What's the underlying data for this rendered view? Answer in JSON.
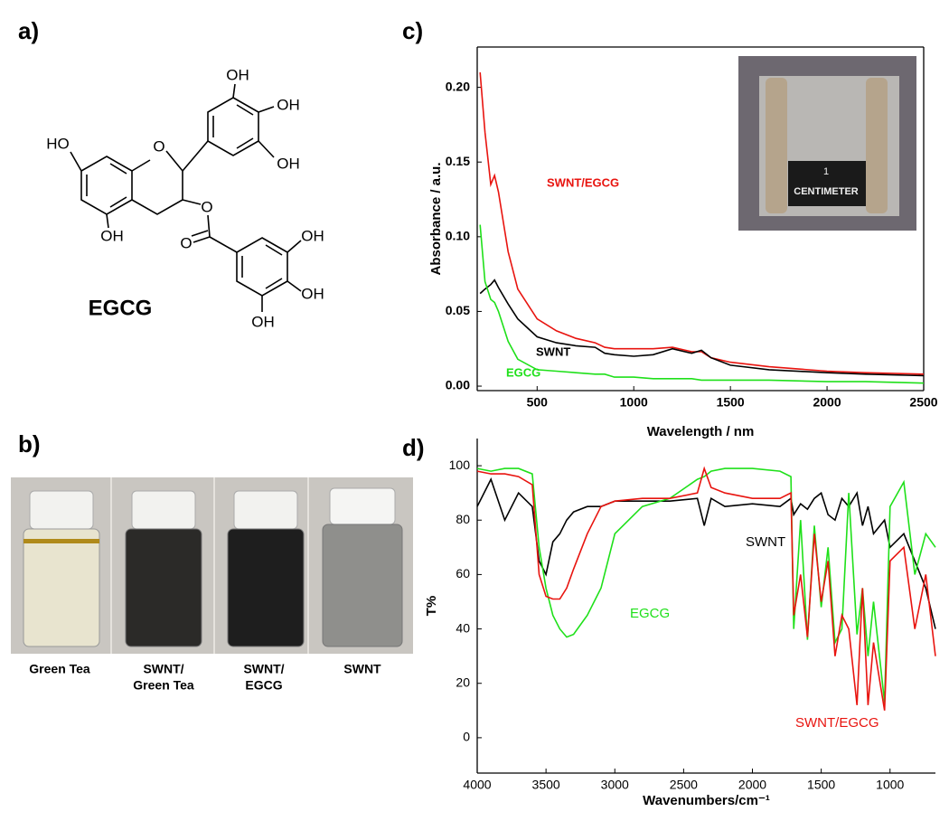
{
  "panel_labels": [
    "a)",
    "b)",
    "c)",
    "d)"
  ],
  "structure": {
    "name": "EGCG",
    "atoms": [
      "HO",
      "O",
      "OH",
      "OH",
      "OH",
      "OH",
      "O",
      "O",
      "OH",
      "OH",
      "OH"
    ]
  },
  "photo": {
    "captions": [
      [
        "Green Tea"
      ],
      [
        "SWNT/",
        "Green Tea"
      ],
      [
        "SWNT/",
        "EGCG"
      ],
      [
        "SWNT"
      ]
    ]
  },
  "inset": {
    "ruler_number": "1",
    "ruler_label": "CENTIMETER"
  },
  "chart_data": [
    {
      "type": "line",
      "xlabel": "Wavelength / nm",
      "ylabel": "Absorbance / a.u.",
      "xlim": [
        190,
        2500
      ],
      "ylim": [
        -0.003,
        0.227
      ],
      "xticks": [
        500,
        1000,
        1500,
        2000,
        2500
      ],
      "yticks": [
        {
          "value": 0,
          "label": "0.00"
        },
        0.05,
        {
          "value": 0.1,
          "label": "0.10"
        },
        0.15,
        {
          "value": 0.2,
          "label": "0.20"
        }
      ],
      "grid": false,
      "x": [
        205,
        230,
        260,
        280,
        300,
        350,
        400,
        500,
        600,
        700,
        800,
        850,
        900,
        1000,
        1100,
        1200,
        1300,
        1350,
        1400,
        1500,
        1700,
        2000,
        2200,
        2500
      ],
      "series": [
        {
          "name": "SWNT/EGCG",
          "color": "#e8140f",
          "values": [
            0.21,
            0.17,
            0.135,
            0.141,
            0.13,
            0.09,
            0.065,
            0.045,
            0.037,
            0.032,
            0.029,
            0.026,
            0.025,
            0.025,
            0.025,
            0.026,
            0.023,
            0.023,
            0.019,
            0.016,
            0.013,
            0.01,
            0.009,
            0.008
          ]
        },
        {
          "name": "SWNT",
          "color": "#000000",
          "values": [
            0.062,
            0.065,
            0.068,
            0.071,
            0.066,
            0.055,
            0.045,
            0.033,
            0.029,
            0.027,
            0.026,
            0.022,
            0.021,
            0.02,
            0.021,
            0.025,
            0.022,
            0.024,
            0.019,
            0.014,
            0.011,
            0.009,
            0.008,
            0.007
          ]
        },
        {
          "name": "EGCG",
          "color": "#1fe01a",
          "values": [
            0.108,
            0.07,
            0.058,
            0.056,
            0.05,
            0.03,
            0.018,
            0.011,
            0.01,
            0.009,
            0.008,
            0.008,
            0.006,
            0.006,
            0.005,
            0.005,
            0.005,
            0.004,
            0.004,
            0.004,
            0.004,
            0.003,
            0.003,
            0.002
          ]
        }
      ]
    },
    {
      "type": "line",
      "xlabel": "Wavenumbers/cm⁻¹",
      "ylabel": "T%",
      "xlim": [
        4000,
        670
      ],
      "ylim": [
        -13,
        110
      ],
      "xticks": [
        4000,
        3500,
        3000,
        2500,
        2000,
        1500,
        1000
      ],
      "yticks": [
        0,
        20,
        40,
        60,
        80,
        100
      ],
      "grid": false,
      "x": [
        4000,
        3900,
        3800,
        3700,
        3600,
        3550,
        3500,
        3450,
        3400,
        3350,
        3300,
        3200,
        3100,
        3000,
        2800,
        2600,
        2400,
        2350,
        2300,
        2200,
        2000,
        1800,
        1720,
        1700,
        1650,
        1600,
        1550,
        1500,
        1450,
        1400,
        1350,
        1300,
        1240,
        1200,
        1160,
        1120,
        1040,
        1000,
        900,
        820,
        740,
        670
      ],
      "series": [
        {
          "name": "SWNT",
          "color": "#000000",
          "values": [
            85,
            95,
            80,
            90,
            85,
            65,
            60,
            72,
            75,
            80,
            83,
            85,
            85,
            87,
            87,
            87,
            88,
            78,
            88,
            85,
            86,
            85,
            88,
            82,
            86,
            84,
            88,
            90,
            82,
            80,
            88,
            85,
            90,
            78,
            85,
            75,
            80,
            70,
            75,
            65,
            55,
            40
          ]
        },
        {
          "name": "EGCG",
          "color": "#1fe01a",
          "values": [
            99,
            98,
            99,
            99,
            97,
            70,
            55,
            45,
            40,
            37,
            38,
            45,
            55,
            75,
            85,
            88,
            95,
            96,
            98,
            99,
            99,
            98,
            96,
            40,
            80,
            36,
            78,
            48,
            70,
            35,
            40,
            90,
            38,
            55,
            30,
            50,
            13,
            85,
            94,
            60,
            75,
            70
          ]
        },
        {
          "name": "SWNT/EGCG",
          "color": "#e8140f",
          "values": [
            98,
            97,
            97,
            96,
            93,
            60,
            52,
            51,
            51,
            55,
            62,
            75,
            85,
            87,
            88,
            88,
            90,
            99,
            92,
            90,
            88,
            88,
            90,
            45,
            60,
            37,
            75,
            50,
            65,
            30,
            45,
            40,
            12,
            55,
            12,
            35,
            10,
            65,
            70,
            40,
            60,
            30
          ]
        }
      ]
    }
  ]
}
